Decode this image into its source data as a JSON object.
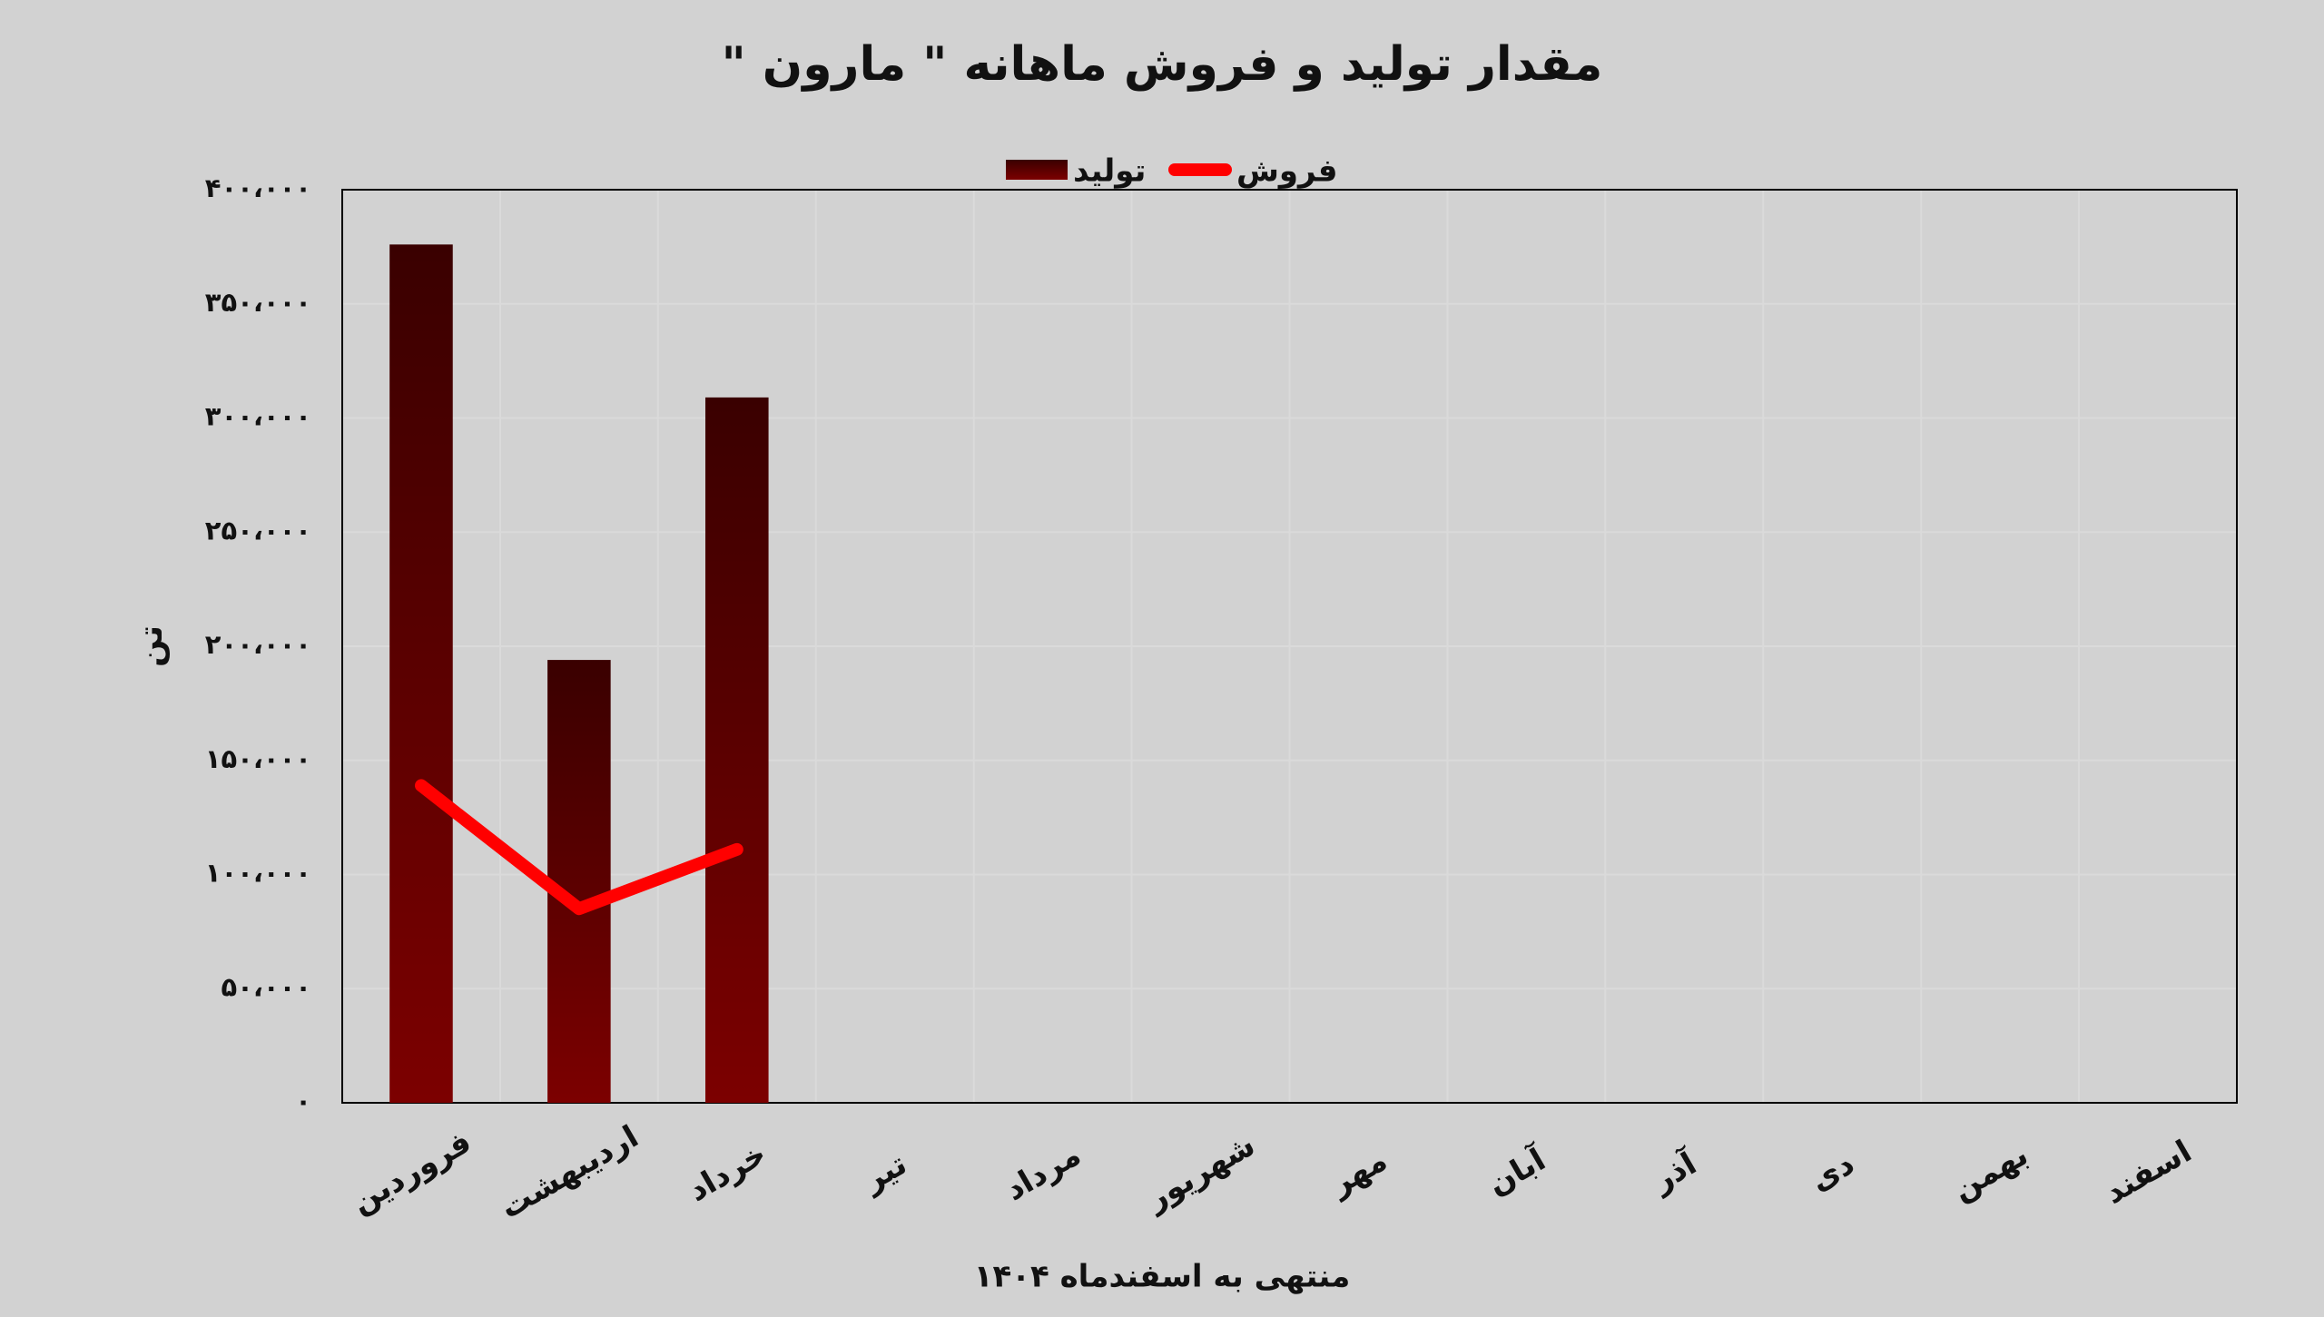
{
  "chart_data": {
    "type": "bar",
    "title": "مقدار تولید و فروش ماهانه \" مارون \"",
    "x_label": "منتهی به اسفندماه ۱۴۰۴",
    "y_label": "تن",
    "categories": [
      "فروردین",
      "اردیبهشت",
      "خرداد",
      "تیر",
      "مرداد",
      "شهریور",
      "مهر",
      "آبان",
      "آذر",
      "دی",
      "بهمن",
      "اسفند"
    ],
    "series": [
      {
        "name": "تولید",
        "type": "bar",
        "color": "#6e0000",
        "values": [
          376000,
          194000,
          309000,
          null,
          null,
          null,
          null,
          null,
          null,
          null,
          null,
          null
        ]
      },
      {
        "name": "فروش",
        "type": "line",
        "color": "#ff0000",
        "values": [
          139000,
          85000,
          111000,
          null,
          null,
          null,
          null,
          null,
          null,
          null,
          null,
          null
        ]
      }
    ],
    "ylim": [
      0,
      400000
    ],
    "yticks": [
      {
        "value": 0,
        "label": "۰"
      },
      {
        "value": 50000,
        "label": "۵۰،۰۰۰"
      },
      {
        "value": 100000,
        "label": "۱۰۰،۰۰۰"
      },
      {
        "value": 150000,
        "label": "۱۵۰،۰۰۰"
      },
      {
        "value": 200000,
        "label": "۲۰۰،۰۰۰"
      },
      {
        "value": 250000,
        "label": "۲۵۰،۰۰۰"
      },
      {
        "value": 300000,
        "label": "۳۰۰،۰۰۰"
      },
      {
        "value": 350000,
        "label": "۳۵۰،۰۰۰"
      },
      {
        "value": 400000,
        "label": "۴۰۰،۰۰۰"
      }
    ],
    "grid": true,
    "legend": "top"
  }
}
